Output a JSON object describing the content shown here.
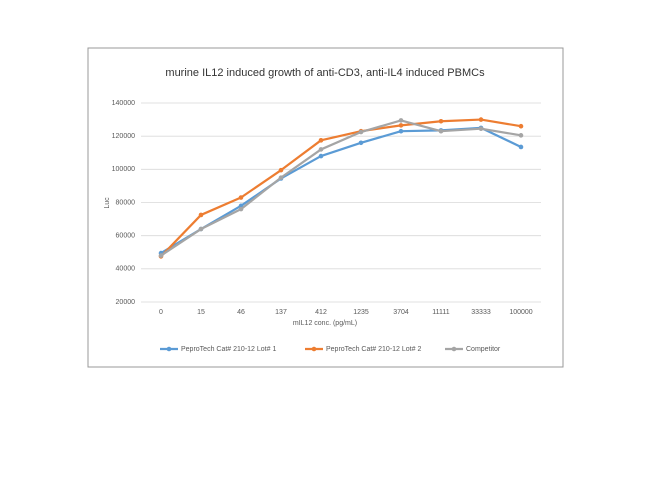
{
  "chart_data": {
    "type": "line",
    "title": "murine IL12 induced growth of anti-CD3, anti-IL4 induced PBMCs",
    "xlabel": "mIL12 conc. (pg/mL)",
    "ylabel": "Luc",
    "categories": [
      "0",
      "15",
      "46",
      "137",
      "412",
      "1235",
      "3704",
      "11111",
      "33333",
      "100000"
    ],
    "series": [
      {
        "name": "PeproTech Cat# 210-12 Lot# 1",
        "color": "#5b9bd5",
        "values": [
          49500,
          64000,
          78000,
          94500,
          108000,
          116000,
          123000,
          123500,
          125000,
          113500
        ]
      },
      {
        "name": "PeproTech Cat# 210-12 Lot# 2",
        "color": "#ed7d31",
        "values": [
          47500,
          72500,
          83000,
          99500,
          117500,
          123000,
          126500,
          129000,
          130000,
          126000
        ]
      },
      {
        "name": "Competitor",
        "color": "#a5a5a5",
        "values": [
          48000,
          64000,
          76000,
          95000,
          112000,
          122500,
          129500,
          123000,
          124500,
          120500
        ]
      }
    ],
    "ylim": [
      20000,
      140000
    ],
    "yticks": [
      20000,
      40000,
      60000,
      80000,
      100000,
      120000,
      140000
    ],
    "grid": true,
    "legend": "bottom"
  }
}
